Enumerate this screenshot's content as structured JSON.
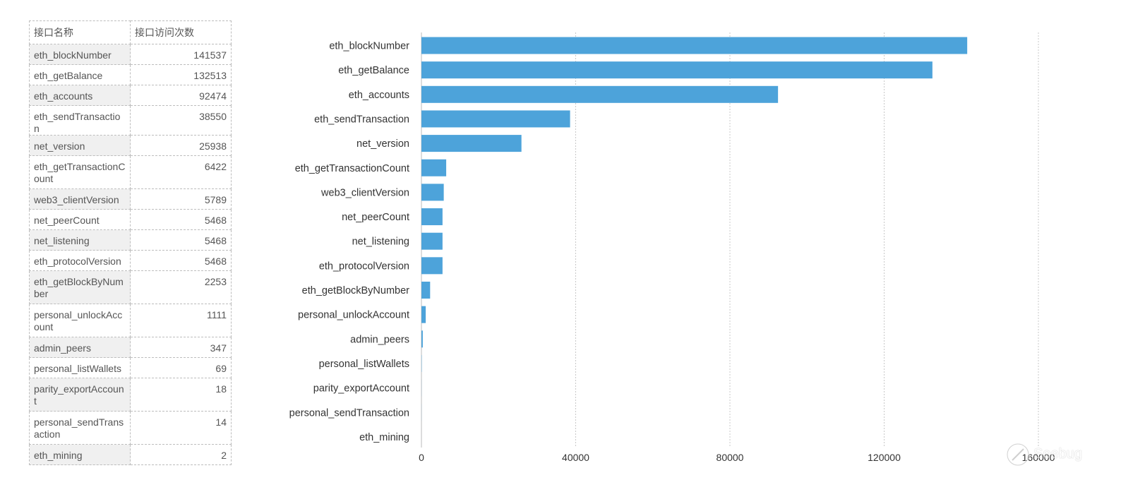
{
  "table": {
    "headers": [
      "接口名称",
      "接口访问次数"
    ],
    "rows": [
      {
        "name": "eth_blockNumber",
        "count": "141537"
      },
      {
        "name": "eth_getBalance",
        "count": "132513"
      },
      {
        "name": "eth_accounts",
        "count": "92474"
      },
      {
        "name": "eth_sendTransaction",
        "count": "38550"
      },
      {
        "name": "net_version",
        "count": "25938"
      },
      {
        "name": "eth_getTransactionCount",
        "count": "6422"
      },
      {
        "name": "web3_clientVersion",
        "count": "5789"
      },
      {
        "name": "net_peerCount",
        "count": "5468"
      },
      {
        "name": "net_listening",
        "count": "5468"
      },
      {
        "name": "eth_protocolVersion",
        "count": "5468"
      },
      {
        "name": "eth_getBlockByNumber",
        "count": "2253"
      },
      {
        "name": "personal_unlockAccount",
        "count": "1111"
      },
      {
        "name": "admin_peers",
        "count": "347"
      },
      {
        "name": "personal_listWallets",
        "count": "69"
      },
      {
        "name": "parity_exportAccount",
        "count": "18"
      },
      {
        "name": "personal_sendTransaction",
        "count": "14"
      },
      {
        "name": "eth_mining",
        "count": "2"
      }
    ]
  },
  "chart_data": {
    "type": "bar",
    "orientation": "horizontal",
    "categories": [
      "eth_blockNumber",
      "eth_getBalance",
      "eth_accounts",
      "eth_sendTransaction",
      "net_version",
      "eth_getTransactionCount",
      "web3_clientVersion",
      "net_peerCount",
      "net_listening",
      "eth_protocolVersion",
      "eth_getBlockByNumber",
      "personal_unlockAccount",
      "admin_peers",
      "personal_listWallets",
      "parity_exportAccount",
      "personal_sendTransaction",
      "eth_mining"
    ],
    "values": [
      141537,
      132513,
      92474,
      38550,
      25938,
      6422,
      5789,
      5468,
      5468,
      5468,
      2253,
      1111,
      347,
      69,
      18,
      14,
      2
    ],
    "xlim": [
      0,
      160000
    ],
    "xticks": [
      0,
      40000,
      80000,
      120000,
      160000
    ],
    "xtick_labels": [
      "0",
      "40000",
      "80000",
      "120000",
      "160000"
    ],
    "grid": true,
    "bar_color": "#4da3da"
  },
  "watermark": {
    "text": "Seebug"
  }
}
